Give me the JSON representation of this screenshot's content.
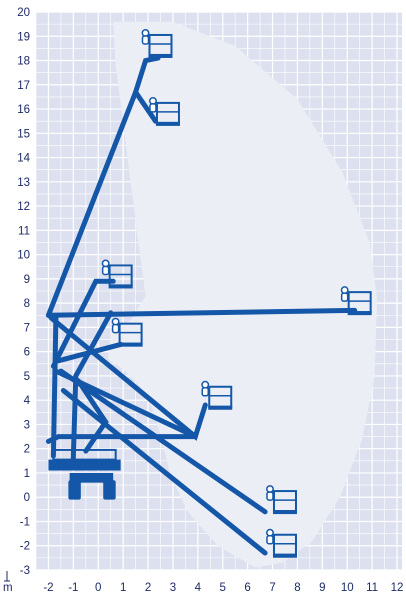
{
  "diagram": {
    "unit_label": "m",
    "x_range": [
      -2.5,
      12.2
    ],
    "y_range": [
      -3,
      20
    ],
    "x_ticks": [
      -2,
      -1,
      0,
      1,
      2,
      3,
      4,
      5,
      6,
      7,
      8,
      9,
      10,
      11,
      12
    ],
    "y_ticks": [
      20,
      19,
      18,
      17,
      16,
      15,
      14,
      13,
      12,
      11,
      10,
      9,
      8,
      7,
      6,
      5,
      4,
      3,
      2,
      1,
      0,
      -1,
      -2,
      -3
    ],
    "colors": {
      "background": "#dde1ef",
      "grid": "#ffffff",
      "envelope": "#eceef6",
      "machine": "#1457a8",
      "text": "#1c2a66"
    },
    "platform_positions": [
      {
        "x": 2.5,
        "y": 18.6
      },
      {
        "x": 2.8,
        "y": 15.8
      },
      {
        "x": 0.9,
        "y": 9.1
      },
      {
        "x": 1.3,
        "y": 6.7
      },
      {
        "x": 10.5,
        "y": 8.0
      },
      {
        "x": 4.9,
        "y": 4.1
      },
      {
        "x": 7.5,
        "y": -0.2
      },
      {
        "x": 7.5,
        "y": -2.0
      }
    ]
  }
}
